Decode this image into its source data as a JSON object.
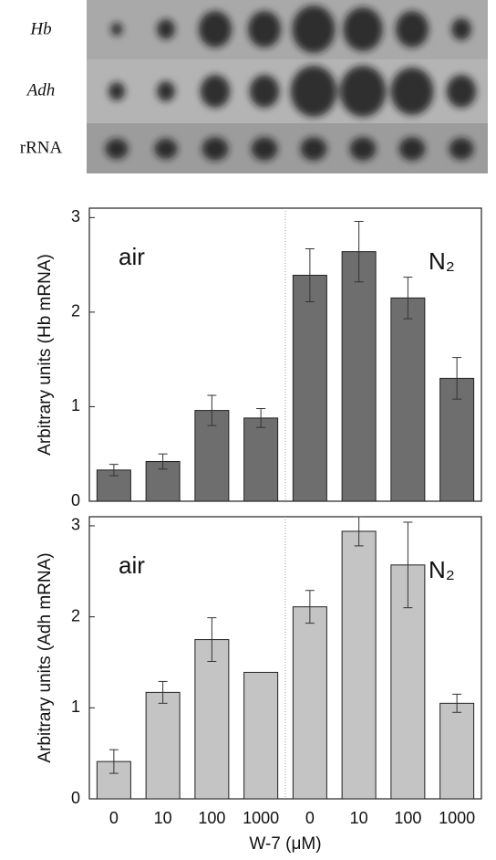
{
  "blot": {
    "rows": [
      "Hb",
      "Adh",
      "rRNA"
    ]
  },
  "chart_data": [
    {
      "type": "bar",
      "ylabel": "Arbitrary units (Hb mRNA)",
      "annotations": [
        "air",
        "N₂"
      ],
      "values": [
        0.33,
        0.42,
        0.96,
        0.88,
        2.39,
        2.64,
        2.15,
        1.3
      ],
      "errors": [
        0.06,
        0.08,
        0.16,
        0.1,
        0.28,
        0.32,
        0.22,
        0.22
      ],
      "color": "#6e6e6e",
      "ylim": [
        0,
        3.1
      ],
      "yticks": [
        0,
        1,
        2,
        3
      ]
    },
    {
      "type": "bar",
      "ylabel": "Arbitrary units (Adh mRNA)",
      "annotations": [
        "air",
        "N₂"
      ],
      "xlabel": "W-7 (μM)",
      "categories": [
        "0",
        "10",
        "100",
        "1000",
        "0",
        "10",
        "100",
        "1000"
      ],
      "values": [
        0.41,
        1.17,
        1.75,
        1.39,
        2.11,
        2.94,
        2.57,
        1.05
      ],
      "errors": [
        0.13,
        0.12,
        0.24,
        null,
        0.18,
        0.16,
        0.47,
        0.1
      ],
      "color": "#c4c4c4",
      "ylim": [
        0,
        3.1
      ],
      "yticks": [
        0,
        1,
        2,
        3
      ]
    }
  ]
}
